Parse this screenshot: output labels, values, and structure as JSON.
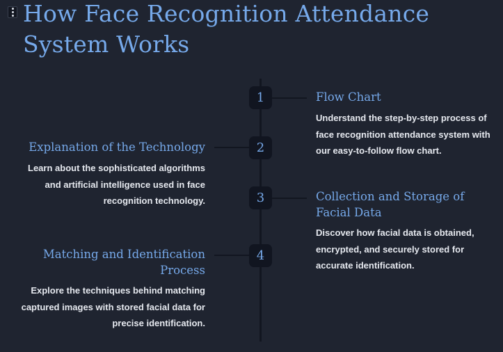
{
  "page": {
    "title": "How Face Recognition Attendance System Works"
  },
  "steps": [
    {
      "number": "1",
      "heading": "Flow Chart",
      "description": "Understand the step-by-step process of face recognition attendance system with our easy-to-follow flow chart."
    },
    {
      "number": "2",
      "heading": "Explanation of the Technology",
      "description": "Learn about the sophisticated algorithms and artificial intelligence used in face recognition technology."
    },
    {
      "number": "3",
      "heading": "Collection and Storage of Facial Data",
      "description": "Discover how facial data is obtained, encrypted, and securely stored for accurate identification."
    },
    {
      "number": "4",
      "heading": "Matching and Identification Process",
      "description": "Explore the techniques behind matching captured images with stored facial data for precise identification."
    }
  ],
  "icons": {
    "menu": "vertical-dots-icon"
  },
  "colors": {
    "background": "#1f2430",
    "accent": "#76a9ea",
    "text": "#e6e9ef",
    "badge": "#111520"
  }
}
